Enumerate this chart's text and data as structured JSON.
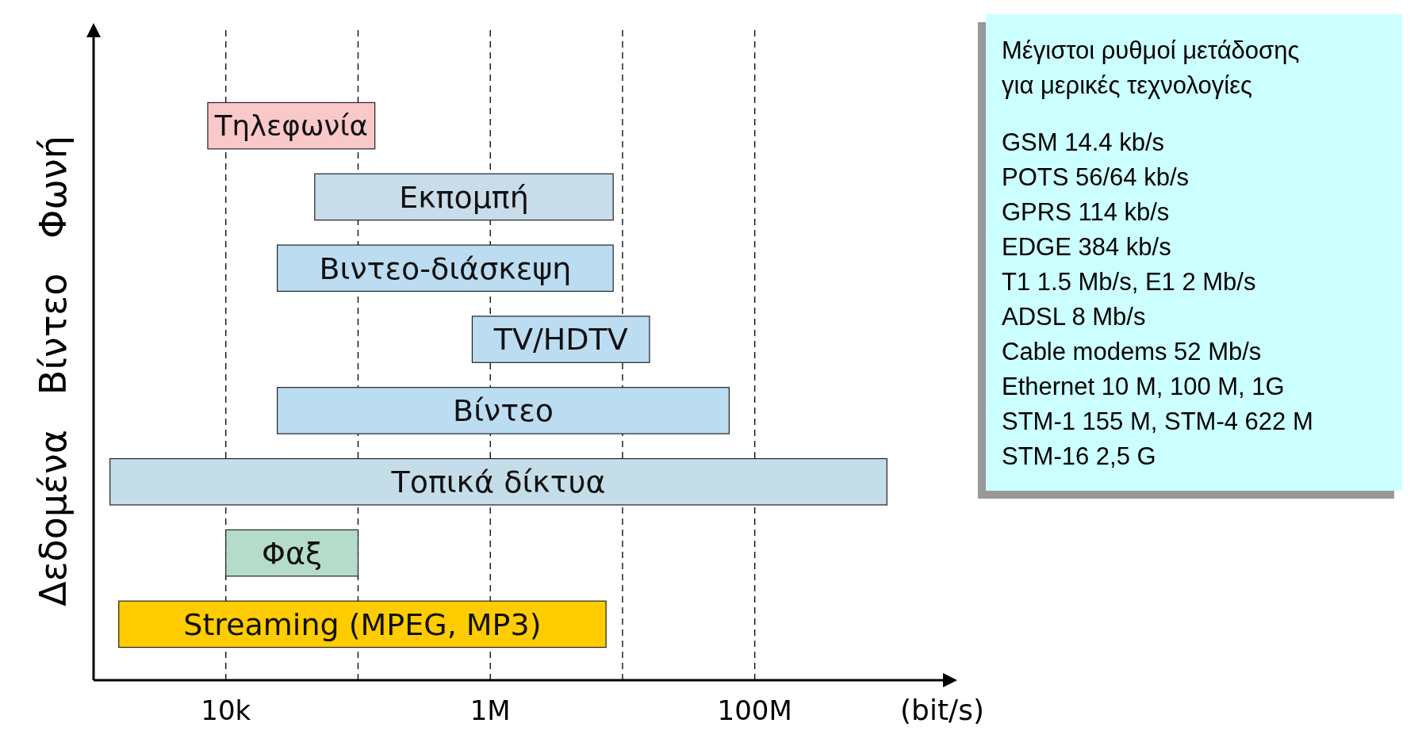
{
  "chart_data": {
    "type": "bar",
    "orientation": "horizontal",
    "log": "x",
    "categories": [
      "Τηλεφωνία",
      "Εκπομπή",
      "Βιντεο-διάσκεψη",
      "TV/HDTV",
      "Βίντεο",
      "Τοπικά δίκτυα",
      "Φαξ",
      "Streaming (MPEG, MP3)"
    ],
    "base": [
      7300,
      47000,
      24500,
      730000,
      24500,
      1330,
      10000,
      1550
    ],
    "values": [
      126700,
      8453000,
      8475500,
      15270000,
      63975500,
      998670000,
      90000,
      7498450
    ],
    "colors": [
      "#f9c8c8",
      "#c8dcea",
      "#bcdcf2",
      "#bcdcf2",
      "#bcdcf2",
      "#c5dde8",
      "#b5dccb",
      "#ffcc00"
    ],
    "xlim": [
      1000,
      3000000000
    ],
    "xticks": [
      {
        "value": 10000,
        "label": "10k"
      },
      {
        "value": 100000,
        "label": null
      },
      {
        "value": 1000000,
        "label": "1M"
      },
      {
        "value": 10000000,
        "label": null
      },
      {
        "value": 100000000,
        "label": "100M"
      }
    ],
    "grid": "x",
    "xlabel": "(bit/s)",
    "ylabel": "Δεδομένα   Βίντεο   Φωνή",
    "annotations": [
      "Μέγιστοι ρυθμοί μετάδοσης για μερικές τεχνολογίες",
      "GSM 14.4 kb/s",
      "POTS 56/64 kb/s",
      "GPRS 114 kb/s",
      "EDGE 384 kb/s",
      "T1 1.5 Mb/s, E1 2 Mb/s",
      "ADSL 8 Mb/s",
      "Cable modems 52 Mb/s",
      "Ethernet 10 M, 100 M, 1G",
      "STM-1 155 M, STM-4 622 M",
      "STM-16 2,5 G"
    ]
  }
}
